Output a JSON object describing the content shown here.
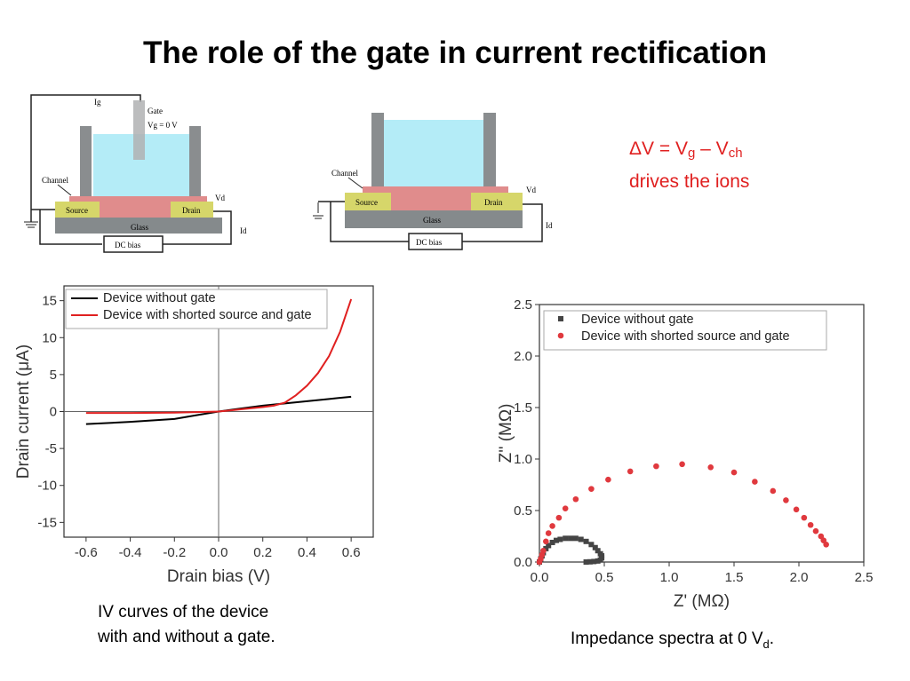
{
  "title": "The role of the gate in current rectification",
  "equation": {
    "dv": "ΔV = V",
    "g": "g",
    "mid": " – V",
    "ch": "ch",
    "line2": "drives the ions"
  },
  "diagram_left": {
    "ig": "Ig",
    "gate": "Gate",
    "vg": "Vg = 0 V",
    "channel": "Channel",
    "source": "Source",
    "drain": "Drain",
    "glass": "Glass",
    "vd": "Vd",
    "id": "Id",
    "dc": "DC bias"
  },
  "diagram_right": {
    "channel": "Channel",
    "source": "Source",
    "drain": "Drain",
    "glass": "Glass",
    "vd": "Vd",
    "id": "Id",
    "dc": "DC bias"
  },
  "caption_iv": [
    "IV curves of the device",
    "with and without a gate."
  ],
  "caption_imp": {
    "text": "Impedance spectra at 0 V",
    "sub": "d",
    "end": "."
  },
  "chart_data": [
    {
      "type": "line",
      "xlabel": "Drain bias (V)",
      "ylabel": "Drain current (μA)",
      "xlim": [
        -0.7,
        0.7
      ],
      "ylim": [
        -17,
        17
      ],
      "xticks": [
        "-0.6",
        "-0.4",
        "-0.2",
        "0.0",
        "0.2",
        "0.4",
        "0.6"
      ],
      "yticks": [
        "15",
        "10",
        "5",
        "0",
        "-5",
        "-10",
        "-15"
      ],
      "legend": "top-left",
      "series": [
        {
          "name": "Device without gate",
          "color": "#000000",
          "x": [
            -0.6,
            -0.4,
            -0.2,
            -0.1,
            0,
            0.1,
            0.2,
            0.3,
            0.4,
            0.5,
            0.6
          ],
          "y": [
            -1.7,
            -1.4,
            -1.0,
            -0.5,
            0,
            0.4,
            0.8,
            1.1,
            1.4,
            1.7,
            2.0
          ]
        },
        {
          "name": "Device with shorted source and gate",
          "color": "#e02020",
          "x": [
            -0.6,
            -0.4,
            -0.2,
            0,
            0.1,
            0.2,
            0.25,
            0.3,
            0.35,
            0.4,
            0.45,
            0.5,
            0.55,
            0.6
          ],
          "y": [
            -0.2,
            -0.2,
            -0.15,
            0,
            0.3,
            0.6,
            0.8,
            1.2,
            2.2,
            3.5,
            5.2,
            7.5,
            10.8,
            15.2
          ]
        }
      ]
    },
    {
      "type": "scatter",
      "xlabel": "Z' (MΩ)",
      "ylabel": "Z'' (MΩ)",
      "xlim": [
        0,
        2.5
      ],
      "ylim": [
        0,
        2.5
      ],
      "xticks": [
        "0.0",
        "0.5",
        "1.0",
        "1.5",
        "2.0",
        "2.5"
      ],
      "yticks": [
        "0.0",
        "0.5",
        "1.0",
        "1.5",
        "2.0",
        "2.5"
      ],
      "legend": "top-left",
      "series": [
        {
          "name": "Device without gate",
          "color": "#444444",
          "marker": "square",
          "x": [
            0,
            0.01,
            0.02,
            0.03,
            0.05,
            0.07,
            0.1,
            0.13,
            0.16,
            0.2,
            0.24,
            0.28,
            0.32,
            0.36,
            0.4,
            0.43,
            0.45,
            0.47,
            0.48,
            0.48,
            0.47,
            0.45,
            0.42,
            0.39,
            0.36
          ],
          "y": [
            0,
            0.03,
            0.06,
            0.09,
            0.13,
            0.16,
            0.19,
            0.21,
            0.22,
            0.23,
            0.23,
            0.23,
            0.22,
            0.2,
            0.17,
            0.14,
            0.11,
            0.08,
            0.06,
            0.04,
            0.02,
            0.01,
            0.005,
            0.002,
            0
          ]
        },
        {
          "name": "Device with shorted source and gate",
          "color": "#e0393e",
          "marker": "circle",
          "x": [
            0,
            0.01,
            0.02,
            0.03,
            0.05,
            0.07,
            0.1,
            0.15,
            0.2,
            0.28,
            0.4,
            0.53,
            0.7,
            0.9,
            1.1,
            1.32,
            1.5,
            1.66,
            1.8,
            1.9,
            1.98,
            2.04,
            2.09,
            2.13,
            2.17,
            2.19,
            2.21
          ],
          "y": [
            0,
            0.03,
            0.07,
            0.11,
            0.2,
            0.28,
            0.35,
            0.43,
            0.52,
            0.61,
            0.71,
            0.8,
            0.88,
            0.93,
            0.95,
            0.92,
            0.87,
            0.78,
            0.69,
            0.6,
            0.51,
            0.43,
            0.36,
            0.3,
            0.25,
            0.21,
            0.17
          ]
        }
      ]
    }
  ]
}
